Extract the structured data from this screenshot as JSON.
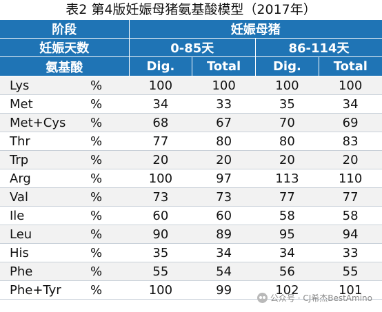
{
  "title": "表2 第4版妊娠母猪氨基酸模型（2017年）",
  "header": {
    "stage_label": "阶段",
    "stage_value": "妊娠母猪",
    "days_label": "妊娠天数",
    "period1": "0-85天",
    "period2": "86-114天",
    "aa_label": "氨基酸",
    "dig_label": "Dig.",
    "total_label": "Total"
  },
  "rows": [
    {
      "name": "Lys",
      "unit": "%",
      "v": [
        "100",
        "100",
        "100",
        "100"
      ]
    },
    {
      "name": "Met",
      "unit": "%",
      "v": [
        "34",
        "33",
        "35",
        "34"
      ]
    },
    {
      "name": "Met+Cys",
      "unit": "%",
      "v": [
        "68",
        "67",
        "70",
        "69"
      ]
    },
    {
      "name": "Thr",
      "unit": "%",
      "v": [
        "77",
        "80",
        "80",
        "83"
      ]
    },
    {
      "name": "Trp",
      "unit": "%",
      "v": [
        "20",
        "20",
        "20",
        "20"
      ]
    },
    {
      "name": "Arg",
      "unit": "%",
      "v": [
        "100",
        "97",
        "113",
        "110"
      ]
    },
    {
      "name": "Val",
      "unit": "%",
      "v": [
        "73",
        "73",
        "77",
        "77"
      ]
    },
    {
      "name": "Ile",
      "unit": "%",
      "v": [
        "60",
        "60",
        "58",
        "58"
      ]
    },
    {
      "name": "Leu",
      "unit": "%",
      "v": [
        "90",
        "89",
        "95",
        "94"
      ]
    },
    {
      "name": "His",
      "unit": "%",
      "v": [
        "35",
        "34",
        "34",
        "33"
      ]
    },
    {
      "name": "Phe",
      "unit": "%",
      "v": [
        "55",
        "54",
        "56",
        "55"
      ]
    },
    {
      "name": "Phe+Tyr",
      "unit": "%",
      "v": [
        "100",
        "99",
        "102",
        "101"
      ]
    }
  ],
  "watermark": {
    "text": "公众号 · CJ希杰BestAmino",
    "icon": "wechat-icon"
  },
  "colors": {
    "header_bg": "#1f74b5",
    "stripe": "#f2f2f2"
  }
}
